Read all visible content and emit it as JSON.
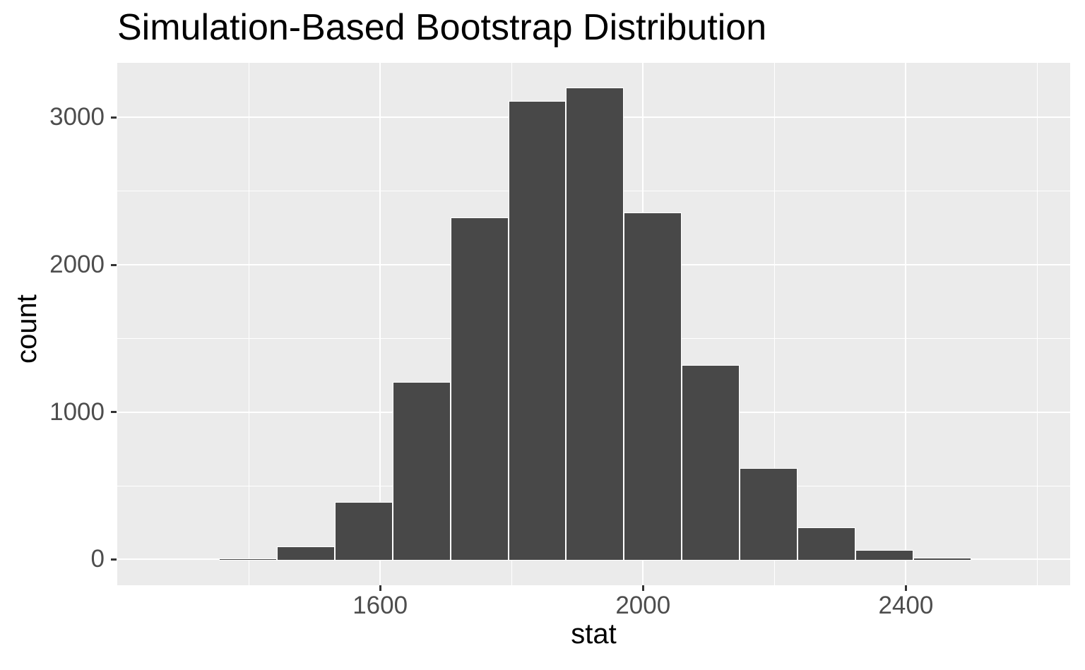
{
  "title": "Simulation-Based Bootstrap Distribution",
  "chart_data": {
    "type": "bar",
    "subtype": "histogram",
    "title": "Simulation-Based Bootstrap Distribution",
    "xlabel": "stat",
    "ylabel": "count",
    "grid": "on",
    "legend": "none",
    "xlim": [
      1200,
      2650
    ],
    "ylim": [
      -175,
      3371
    ],
    "x_major_ticks": [
      1600,
      2000,
      2400
    ],
    "x_minor_gridlines": [
      1400,
      1800,
      2200,
      2600
    ],
    "y_major_ticks": [
      0,
      1000,
      2000,
      3000
    ],
    "y_minor_gridlines": [
      500,
      1500,
      2500
    ],
    "binwidth": 88,
    "bins": [
      {
        "x0": 1355,
        "x1": 1443,
        "count": 8
      },
      {
        "x0": 1443,
        "x1": 1531,
        "count": 90
      },
      {
        "x0": 1531,
        "x1": 1619,
        "count": 390
      },
      {
        "x0": 1619,
        "x1": 1707,
        "count": 1205
      },
      {
        "x0": 1707,
        "x1": 1795,
        "count": 2320
      },
      {
        "x0": 1795,
        "x1": 1883,
        "count": 3110
      },
      {
        "x0": 1883,
        "x1": 1971,
        "count": 3205
      },
      {
        "x0": 1971,
        "x1": 2059,
        "count": 2355
      },
      {
        "x0": 2059,
        "x1": 2147,
        "count": 1320
      },
      {
        "x0": 2147,
        "x1": 2235,
        "count": 620
      },
      {
        "x0": 2235,
        "x1": 2323,
        "count": 220
      },
      {
        "x0": 2323,
        "x1": 2411,
        "count": 65
      },
      {
        "x0": 2411,
        "x1": 2499,
        "count": 12
      }
    ],
    "colors": {
      "background": "#FFFFFF",
      "panel_background": "#EBEBEB",
      "bar_fill": "#484848",
      "bar_border": "#FFFFFF",
      "gridline": "#FFFFFF",
      "tick_label": "#4D4D4D",
      "tick_mark": "#333333",
      "title_text": "#000000"
    }
  }
}
